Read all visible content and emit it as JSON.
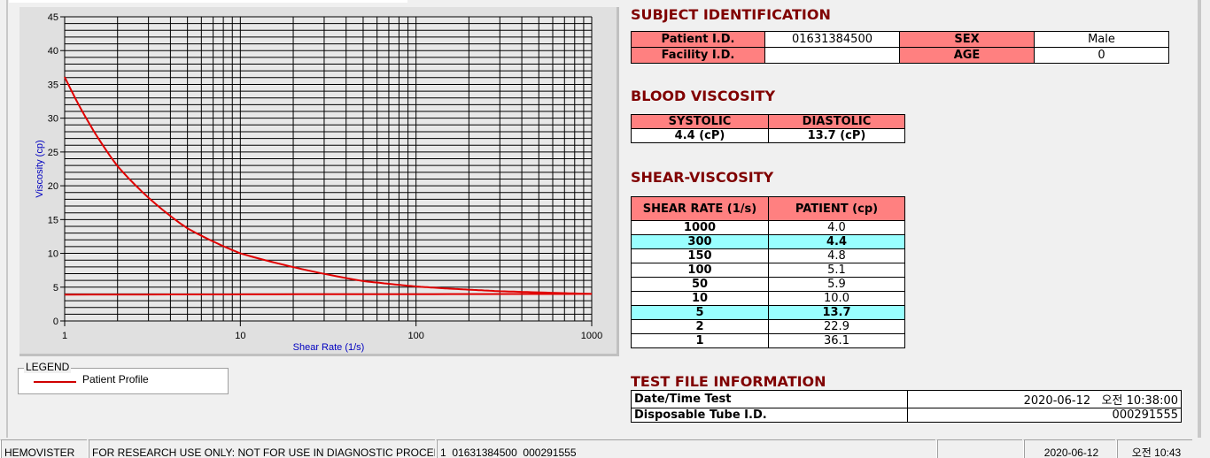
{
  "chart_data": {
    "type": "line",
    "xlabel": "Shear Rate (1/s)",
    "ylabel": "Viscosity (cp)",
    "xscale": "log",
    "xlim": [
      1,
      1000
    ],
    "ylim": [
      0,
      45
    ],
    "xticks": [
      "1",
      "10",
      "100",
      "1000"
    ],
    "yticks": [
      "0",
      "5",
      "10",
      "15",
      "20",
      "25",
      "30",
      "35",
      "40",
      "45"
    ],
    "grid": true,
    "line_color": "#e00000",
    "series": [
      {
        "name": "Patient Profile",
        "x": [
          1,
          2,
          5,
          10,
          50,
          100,
          150,
          300,
          1000
        ],
        "values": [
          36.1,
          22.9,
          13.7,
          10.0,
          5.9,
          5.1,
          4.8,
          4.4,
          4.0
        ]
      },
      {
        "x": [
          1,
          1000
        ],
        "values": [
          3.9,
          4.0
        ]
      }
    ]
  },
  "legend": {
    "title": "LEGEND",
    "items": [
      "Patient Profile"
    ]
  },
  "subject": {
    "title": "SUBJECT IDENTIFICATION",
    "patient_id_label": "Patient I.D.",
    "patient_id": "01631384500",
    "sex_label": "SEX",
    "sex": "Male",
    "facility_label": "Facility I.D.",
    "facility": "",
    "age_label": "AGE",
    "age": "0"
  },
  "blood": {
    "title": "BLOOD VISCOSITY",
    "systolic_label": "SYSTOLIC",
    "diastolic_label": "DIASTOLIC",
    "systolic": "4.4 (cP)",
    "diastolic": "13.7 (cP)"
  },
  "shear": {
    "title": "SHEAR-VISCOSITY",
    "col1": "SHEAR RATE (1/s)",
    "col2": "PATIENT (cp)",
    "rows": [
      {
        "rate": "1000",
        "val": "4.0",
        "hl": false
      },
      {
        "rate": "300",
        "val": "4.4",
        "hl": true
      },
      {
        "rate": "150",
        "val": "4.8",
        "hl": false
      },
      {
        "rate": "100",
        "val": "5.1",
        "hl": false
      },
      {
        "rate": "50",
        "val": "5.9",
        "hl": false
      },
      {
        "rate": "10",
        "val": "10.0",
        "hl": false
      },
      {
        "rate": "5",
        "val": "13.7",
        "hl": true
      },
      {
        "rate": "2",
        "val": "22.9",
        "hl": false
      },
      {
        "rate": "1",
        "val": "36.1",
        "hl": false
      }
    ],
    "highlight_color": "#99ffff"
  },
  "testfile": {
    "title": "TEST FILE INFORMATION",
    "date_label": "Date/Time Test",
    "date": "2020-06-12   오전 10:38:00",
    "tube_label": "Disposable Tube I.D.",
    "tube": "000291555"
  },
  "status": {
    "app": "HEMOVISTER",
    "notice": "FOR RESEARCH USE ONLY: NOT FOR USE IN DIAGNOSTIC PROCEDURES",
    "record": "1  01631384500  000291555",
    "empty": "",
    "date": "2020-06-12",
    "time": "오전 10:43"
  },
  "colors": {
    "header_pink": "#ff8080",
    "title": "#800000"
  }
}
